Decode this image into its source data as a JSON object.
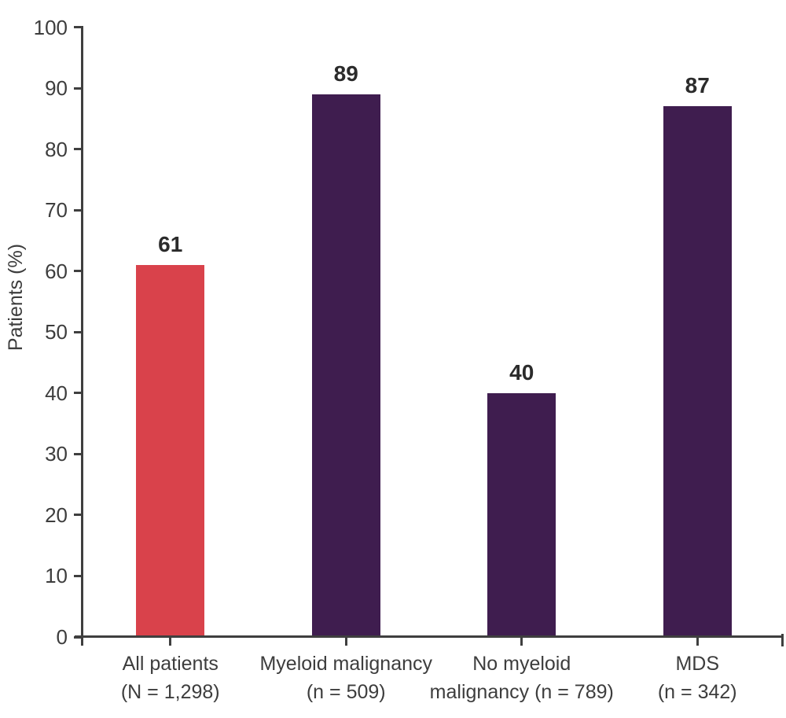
{
  "chart_data": {
    "type": "bar",
    "title": "",
    "xlabel": "",
    "ylabel": "Patients (%)",
    "ylim": [
      0,
      100
    ],
    "ytick_interval": 10,
    "yticks": [
      "0",
      "10",
      "20",
      "30",
      "40",
      "50",
      "60",
      "70",
      "80",
      "90",
      "100"
    ],
    "grid": false,
    "legend": null,
    "categories": [
      "All patients\n(N = 1,298)",
      "Myeloid malignancy\n(n = 509)",
      "No myeloid\nmalignancy (n = 789)",
      "MDS\n(n = 342)"
    ],
    "values": [
      61,
      89,
      40,
      87
    ],
    "value_labels": [
      "61",
      "89",
      "40",
      "87"
    ],
    "bar_colors": [
      "#d9424b",
      "#3f1d4f",
      "#3f1d4f",
      "#3f1d4f"
    ],
    "colors": {
      "axis": "#3f3f3f",
      "tick_label": "#3d3d3d",
      "category_label": "#3d3d3d",
      "value_label": "#2b2b2b",
      "bar_red": "#d9424b",
      "bar_purple": "#3f1d4f",
      "background": "#ffffff"
    }
  }
}
